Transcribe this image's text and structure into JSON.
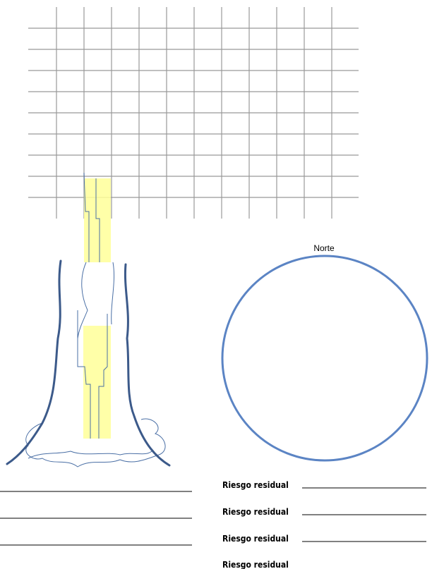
{
  "compass": {
    "label": "Norte"
  },
  "residual_risk": [
    "Riesgo residual",
    "Riesgo residual",
    "Riesgo residual",
    "Riesgo residual"
  ]
}
